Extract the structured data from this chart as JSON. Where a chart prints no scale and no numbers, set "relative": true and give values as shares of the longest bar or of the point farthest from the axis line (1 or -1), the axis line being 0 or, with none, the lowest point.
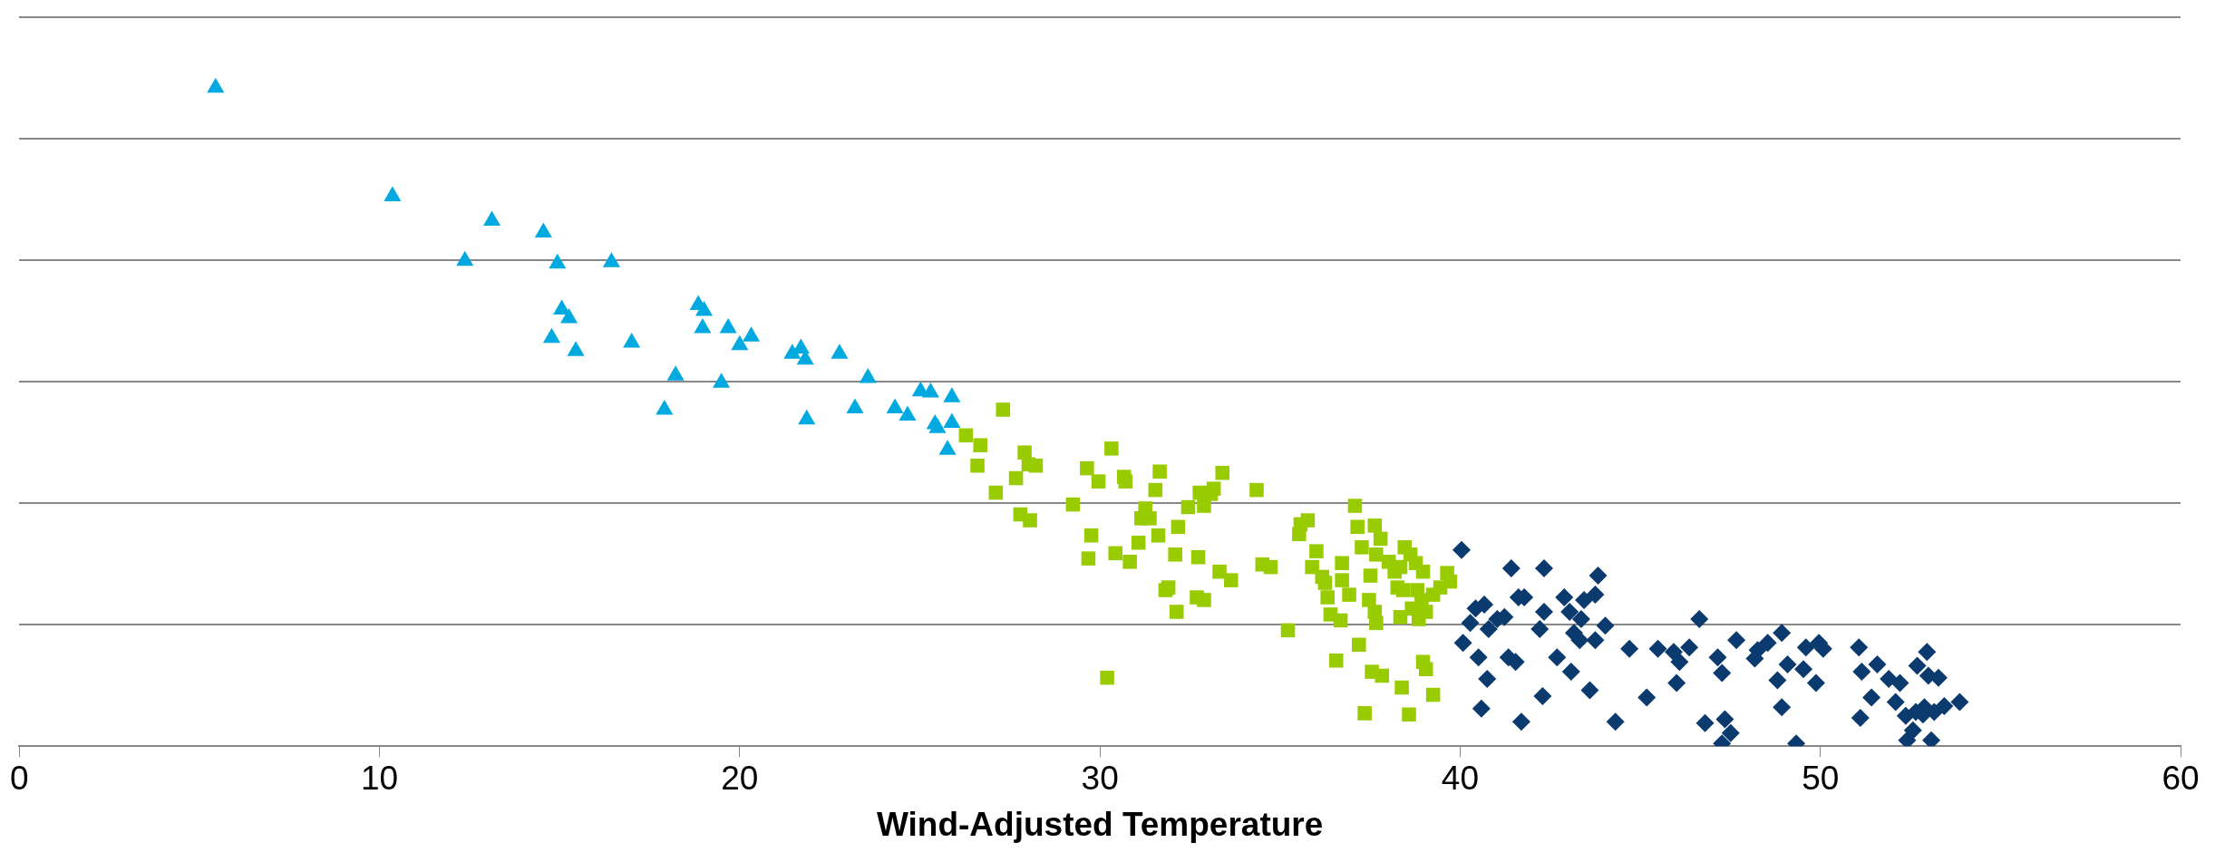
{
  "chart_data": {
    "type": "scatter",
    "xlabel": "Wind-Adjusted Temperature",
    "xlim": [
      0,
      60
    ],
    "xticks": [
      0,
      10,
      20,
      30,
      40,
      50,
      60
    ],
    "relative": true,
    "grid": "y",
    "legend": false,
    "series": [
      {
        "color": "#00a9e0",
        "marker": "triangle",
        "x": [
          5.45,
          10.36,
          13.12,
          12.37,
          14.55,
          14.94,
          16.44,
          15.06,
          15.26,
          14.78,
          15.45,
          17.0,
          18.85,
          19.01,
          18.97,
          19.68,
          20.0,
          20.32,
          19.49,
          18.22,
          17.91,
          21.46,
          21.7,
          21.82,
          22.77,
          21.86,
          23.56,
          23.2,
          24.31,
          24.66,
          25.02,
          25.3,
          25.49,
          25.89,
          25.42,
          25.89,
          25.77
        ],
        "values": [
          1.0,
          0.835,
          0.798,
          0.737,
          0.78,
          0.733,
          0.735,
          0.663,
          0.65,
          0.62,
          0.6,
          0.613,
          0.67,
          0.661,
          0.635,
          0.635,
          0.609,
          0.622,
          0.552,
          0.563,
          0.511,
          0.596,
          0.604,
          0.587,
          0.596,
          0.496,
          0.559,
          0.513,
          0.513,
          0.502,
          0.539,
          0.537,
          0.483,
          0.53,
          0.489,
          0.491,
          0.45
        ]
      },
      {
        "color": "#99cc00",
        "marker": "square",
        "x": [
          27.31,
          26.28,
          26.68,
          26.6,
          27.91,
          28.02,
          28.22,
          27.11,
          27.67,
          29.25,
          27.79,
          28.06,
          29.64,
          30.32,
          29.96,
          30.67,
          30.71,
          31.66,
          31.54,
          31.26,
          31.15,
          29.76,
          29.68,
          30.43,
          30.83,
          31.07,
          31.38,
          31.62,
          32.17,
          32.45,
          32.77,
          33.16,
          32.89,
          33.08,
          33.4,
          34.35,
          32.09,
          32.73,
          32.69,
          31.82,
          31.9,
          32.13,
          32.89,
          33.32,
          33.64,
          34.51,
          34.74,
          35.22,
          30.2,
          35.53,
          35.77,
          35.57,
          36.01,
          35.89,
          36.25,
          36.17,
          36.32,
          36.72,
          36.72,
          37.08,
          37.15,
          37.63,
          37.79,
          38.02,
          37.27,
          37.51,
          37.67,
          36.4,
          36.68,
          36.92,
          37.47,
          37.63,
          38.18,
          38.34,
          38.46,
          38.62,
          38.26,
          37.67,
          37.19,
          36.56,
          37.55,
          37.83,
          37.35,
          38.77,
          38.97,
          38.42,
          38.81,
          38.93,
          38.34,
          38.66,
          38.85,
          39.05,
          39.25,
          39.45,
          39.64,
          39.72,
          38.38,
          38.97,
          39.05,
          39.25,
          38.58
        ],
        "values": [
          0.511,
          0.472,
          0.457,
          0.426,
          0.446,
          0.428,
          0.426,
          0.385,
          0.407,
          0.367,
          0.352,
          0.343,
          0.422,
          0.452,
          0.402,
          0.409,
          0.402,
          0.417,
          0.389,
          0.361,
          0.346,
          0.32,
          0.285,
          0.293,
          0.28,
          0.309,
          0.346,
          0.32,
          0.333,
          0.363,
          0.385,
          0.391,
          0.365,
          0.383,
          0.415,
          0.389,
          0.291,
          0.287,
          0.226,
          0.237,
          0.241,
          0.204,
          0.222,
          0.265,
          0.252,
          0.276,
          0.272,
          0.176,
          0.104,
          0.322,
          0.343,
          0.337,
          0.296,
          0.272,
          0.248,
          0.257,
          0.226,
          0.278,
          0.252,
          0.365,
          0.333,
          0.335,
          0.315,
          0.28,
          0.302,
          0.259,
          0.291,
          0.2,
          0.191,
          0.23,
          0.222,
          0.204,
          0.265,
          0.272,
          0.302,
          0.291,
          0.241,
          0.187,
          0.154,
          0.13,
          0.113,
          0.107,
          0.05,
          0.278,
          0.265,
          0.237,
          0.237,
          0.222,
          0.196,
          0.209,
          0.193,
          0.204,
          0.23,
          0.241,
          0.263,
          0.25,
          0.089,
          0.128,
          0.117,
          0.078,
          0.048
        ]
      },
      {
        "color": "#0b3a6e",
        "marker": "diamond",
        "x": [
          40.04,
          40.08,
          40.28,
          40.43,
          40.67,
          40.51,
          40.75,
          40.79,
          41.03,
          41.23,
          40.59,
          41.42,
          41.34,
          41.62,
          41.78,
          41.54,
          41.7,
          42.33,
          42.33,
          42.21,
          42.29,
          42.69,
          42.89,
          43.04,
          43.08,
          43.16,
          43.32,
          43.36,
          43.44,
          43.6,
          43.75,
          43.83,
          43.75,
          44.03,
          44.31,
          44.7,
          45.18,
          45.49,
          45.93,
          46.09,
          46.01,
          46.64,
          46.8,
          46.36,
          47.35,
          47.15,
          47.27,
          47.67,
          48.18,
          48.26,
          48.54,
          48.81,
          48.93,
          48.93,
          49.09,
          49.53,
          49.33,
          49.6,
          49.96,
          49.88,
          50.08,
          51.07,
          51.15,
          51.11,
          51.42,
          51.58,
          51.9,
          52.09,
          52.21,
          52.41,
          52.69,
          52.89,
          53.08,
          52.96,
          53.0,
          53.28,
          52.37,
          52.57,
          52.65,
          52.85,
          53.16,
          53.44,
          53.87,
          47.27,
          47.51
        ],
        "values": [
          0.298,
          0.157,
          0.187,
          0.209,
          0.215,
          0.135,
          0.102,
          0.178,
          0.193,
          0.196,
          0.057,
          0.27,
          0.135,
          0.226,
          0.226,
          0.128,
          0.037,
          0.27,
          0.204,
          0.178,
          0.076,
          0.135,
          0.226,
          0.204,
          0.113,
          0.172,
          0.161,
          0.193,
          0.222,
          0.085,
          0.161,
          0.259,
          0.23,
          0.183,
          0.037,
          0.148,
          0.074,
          0.148,
          0.143,
          0.128,
          0.096,
          0.193,
          0.035,
          0.15,
          0.041,
          0.135,
          0.111,
          0.161,
          0.133,
          0.146,
          0.157,
          0.1,
          0.059,
          0.172,
          0.124,
          0.117,
          0.004,
          0.15,
          0.157,
          0.096,
          0.148,
          0.15,
          0.113,
          0.043,
          0.074,
          0.124,
          0.102,
          0.067,
          0.096,
          0.009,
          0.122,
          0.059,
          0.009,
          0.143,
          0.107,
          0.104,
          0.046,
          0.024,
          0.052,
          0.048,
          0.052,
          0.061,
          0.067,
          0.004,
          0.02
        ]
      }
    ]
  }
}
